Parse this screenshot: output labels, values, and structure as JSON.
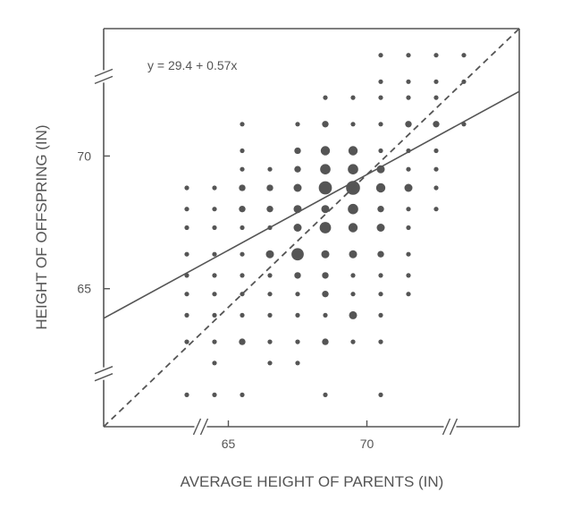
{
  "chart_data": {
    "type": "scatter",
    "title": "",
    "xlabel": "AVERAGE HEIGHT OF PARENTS (IN)",
    "ylabel": "HEIGHT OF OFFSPRING (IN)",
    "xlim": [
      60.5,
      75.5
    ],
    "ylim": [
      59.8,
      74.8
    ],
    "x_ticks": [
      {
        "value": 65,
        "label": "65"
      },
      {
        "value": 70,
        "label": "70"
      }
    ],
    "y_ticks": [
      {
        "value": 65,
        "label": "65"
      },
      {
        "value": 70,
        "label": "70"
      }
    ],
    "x_axis_breaks": [
      64.0,
      73.0
    ],
    "y_axis_breaks": [
      61.8,
      73.0
    ],
    "regression_line": {
      "equation": "y = 29.4 + 0.57x",
      "intercept": 29.4,
      "slope": 0.57,
      "style": "solid"
    },
    "identity_line": {
      "style": "dashed",
      "from": [
        60.5,
        59.8
      ],
      "to": [
        75.5,
        74.8
      ]
    },
    "point_size_scale": "marker area proportional to number of families",
    "grid": false,
    "colors": {
      "points": "#555555",
      "lines": "#555555",
      "frame": "#555555",
      "text": "#555555"
    },
    "points": [
      {
        "x": 70.5,
        "y": 73.8,
        "n": 1
      },
      {
        "x": 71.5,
        "y": 73.8,
        "n": 1
      },
      {
        "x": 72.5,
        "y": 73.8,
        "n": 1
      },
      {
        "x": 73.5,
        "y": 73.8,
        "n": 1
      },
      {
        "x": 70.5,
        "y": 72.8,
        "n": 1
      },
      {
        "x": 71.5,
        "y": 72.8,
        "n": 1
      },
      {
        "x": 72.5,
        "y": 72.8,
        "n": 1
      },
      {
        "x": 73.5,
        "y": 72.8,
        "n": 1
      },
      {
        "x": 68.5,
        "y": 72.2,
        "n": 1
      },
      {
        "x": 69.5,
        "y": 72.2,
        "n": 1
      },
      {
        "x": 70.5,
        "y": 72.2,
        "n": 1
      },
      {
        "x": 71.5,
        "y": 72.2,
        "n": 1
      },
      {
        "x": 72.5,
        "y": 72.2,
        "n": 1
      },
      {
        "x": 65.5,
        "y": 71.2,
        "n": 1
      },
      {
        "x": 67.5,
        "y": 71.2,
        "n": 1
      },
      {
        "x": 68.5,
        "y": 71.2,
        "n": 2
      },
      {
        "x": 69.5,
        "y": 71.2,
        "n": 1
      },
      {
        "x": 70.5,
        "y": 71.2,
        "n": 1
      },
      {
        "x": 71.5,
        "y": 71.2,
        "n": 2
      },
      {
        "x": 72.5,
        "y": 71.2,
        "n": 2
      },
      {
        "x": 73.5,
        "y": 71.2,
        "n": 1
      },
      {
        "x": 65.5,
        "y": 70.2,
        "n": 1
      },
      {
        "x": 67.5,
        "y": 70.2,
        "n": 2
      },
      {
        "x": 68.5,
        "y": 70.2,
        "n": 4
      },
      {
        "x": 69.5,
        "y": 70.2,
        "n": 4
      },
      {
        "x": 70.5,
        "y": 70.2,
        "n": 1
      },
      {
        "x": 71.5,
        "y": 70.2,
        "n": 1
      },
      {
        "x": 72.5,
        "y": 70.2,
        "n": 1
      },
      {
        "x": 65.5,
        "y": 69.5,
        "n": 1
      },
      {
        "x": 66.5,
        "y": 69.5,
        "n": 1
      },
      {
        "x": 67.5,
        "y": 69.5,
        "n": 2
      },
      {
        "x": 68.5,
        "y": 69.5,
        "n": 5
      },
      {
        "x": 69.5,
        "y": 69.5,
        "n": 5
      },
      {
        "x": 70.5,
        "y": 69.5,
        "n": 3
      },
      {
        "x": 71.5,
        "y": 69.5,
        "n": 1
      },
      {
        "x": 72.5,
        "y": 69.5,
        "n": 1
      },
      {
        "x": 63.5,
        "y": 68.8,
        "n": 1
      },
      {
        "x": 64.5,
        "y": 68.8,
        "n": 1
      },
      {
        "x": 65.5,
        "y": 68.8,
        "n": 2
      },
      {
        "x": 66.5,
        "y": 68.8,
        "n": 2
      },
      {
        "x": 67.5,
        "y": 68.8,
        "n": 3
      },
      {
        "x": 68.5,
        "y": 68.8,
        "n": 8
      },
      {
        "x": 69.5,
        "y": 68.8,
        "n": 9
      },
      {
        "x": 70.5,
        "y": 68.8,
        "n": 4
      },
      {
        "x": 71.5,
        "y": 68.8,
        "n": 3
      },
      {
        "x": 72.5,
        "y": 68.8,
        "n": 1
      },
      {
        "x": 63.5,
        "y": 68.0,
        "n": 1
      },
      {
        "x": 64.5,
        "y": 68.0,
        "n": 1
      },
      {
        "x": 65.5,
        "y": 68.0,
        "n": 2
      },
      {
        "x": 66.5,
        "y": 68.0,
        "n": 2
      },
      {
        "x": 67.5,
        "y": 68.0,
        "n": 3
      },
      {
        "x": 68.5,
        "y": 68.0,
        "n": 3
      },
      {
        "x": 69.5,
        "y": 68.0,
        "n": 5
      },
      {
        "x": 70.5,
        "y": 68.0,
        "n": 2
      },
      {
        "x": 71.5,
        "y": 68.0,
        "n": 1
      },
      {
        "x": 72.5,
        "y": 68.0,
        "n": 1
      },
      {
        "x": 63.5,
        "y": 67.3,
        "n": 1
      },
      {
        "x": 64.5,
        "y": 67.3,
        "n": 1
      },
      {
        "x": 65.5,
        "y": 67.3,
        "n": 1
      },
      {
        "x": 66.5,
        "y": 67.3,
        "n": 1
      },
      {
        "x": 67.5,
        "y": 67.3,
        "n": 3
      },
      {
        "x": 68.5,
        "y": 67.3,
        "n": 6
      },
      {
        "x": 69.5,
        "y": 67.3,
        "n": 4
      },
      {
        "x": 70.5,
        "y": 67.3,
        "n": 3
      },
      {
        "x": 71.5,
        "y": 67.3,
        "n": 1
      },
      {
        "x": 63.5,
        "y": 66.3,
        "n": 1
      },
      {
        "x": 64.5,
        "y": 66.3,
        "n": 1
      },
      {
        "x": 65.5,
        "y": 66.3,
        "n": 1
      },
      {
        "x": 66.5,
        "y": 66.3,
        "n": 3
      },
      {
        "x": 67.5,
        "y": 66.3,
        "n": 7
      },
      {
        "x": 68.5,
        "y": 66.3,
        "n": 3
      },
      {
        "x": 69.5,
        "y": 66.3,
        "n": 3
      },
      {
        "x": 70.5,
        "y": 66.3,
        "n": 2
      },
      {
        "x": 71.5,
        "y": 66.3,
        "n": 1
      },
      {
        "x": 63.5,
        "y": 65.5,
        "n": 1
      },
      {
        "x": 64.5,
        "y": 65.5,
        "n": 1
      },
      {
        "x": 65.5,
        "y": 65.5,
        "n": 1
      },
      {
        "x": 66.5,
        "y": 65.5,
        "n": 1
      },
      {
        "x": 67.5,
        "y": 65.5,
        "n": 2
      },
      {
        "x": 68.5,
        "y": 65.5,
        "n": 2
      },
      {
        "x": 69.5,
        "y": 65.5,
        "n": 1
      },
      {
        "x": 70.5,
        "y": 65.5,
        "n": 1
      },
      {
        "x": 71.5,
        "y": 65.5,
        "n": 1
      },
      {
        "x": 63.5,
        "y": 64.8,
        "n": 1
      },
      {
        "x": 64.5,
        "y": 64.8,
        "n": 1
      },
      {
        "x": 65.5,
        "y": 64.8,
        "n": 1
      },
      {
        "x": 66.5,
        "y": 64.8,
        "n": 1
      },
      {
        "x": 67.5,
        "y": 64.8,
        "n": 1
      },
      {
        "x": 68.5,
        "y": 64.8,
        "n": 2
      },
      {
        "x": 69.5,
        "y": 64.8,
        "n": 1
      },
      {
        "x": 70.5,
        "y": 64.8,
        "n": 1
      },
      {
        "x": 71.5,
        "y": 64.8,
        "n": 1
      },
      {
        "x": 63.5,
        "y": 64.0,
        "n": 1
      },
      {
        "x": 64.5,
        "y": 64.0,
        "n": 1
      },
      {
        "x": 65.5,
        "y": 64.0,
        "n": 1
      },
      {
        "x": 66.5,
        "y": 64.0,
        "n": 1
      },
      {
        "x": 67.5,
        "y": 64.0,
        "n": 1
      },
      {
        "x": 68.5,
        "y": 64.0,
        "n": 1
      },
      {
        "x": 69.5,
        "y": 64.0,
        "n": 3
      },
      {
        "x": 70.5,
        "y": 64.0,
        "n": 1
      },
      {
        "x": 63.5,
        "y": 63.0,
        "n": 1
      },
      {
        "x": 64.5,
        "y": 63.0,
        "n": 1
      },
      {
        "x": 65.5,
        "y": 63.0,
        "n": 2
      },
      {
        "x": 66.5,
        "y": 63.0,
        "n": 1
      },
      {
        "x": 67.5,
        "y": 63.0,
        "n": 1
      },
      {
        "x": 68.5,
        "y": 63.0,
        "n": 2
      },
      {
        "x": 69.5,
        "y": 63.0,
        "n": 1
      },
      {
        "x": 70.5,
        "y": 63.0,
        "n": 1
      },
      {
        "x": 64.5,
        "y": 62.2,
        "n": 1
      },
      {
        "x": 66.5,
        "y": 62.2,
        "n": 1
      },
      {
        "x": 67.5,
        "y": 62.2,
        "n": 1
      },
      {
        "x": 63.5,
        "y": 61.0,
        "n": 1
      },
      {
        "x": 64.5,
        "y": 61.0,
        "n": 1
      },
      {
        "x": 65.5,
        "y": 61.0,
        "n": 1
      },
      {
        "x": 68.5,
        "y": 61.0,
        "n": 1
      },
      {
        "x": 70.5,
        "y": 61.0,
        "n": 1
      }
    ]
  }
}
